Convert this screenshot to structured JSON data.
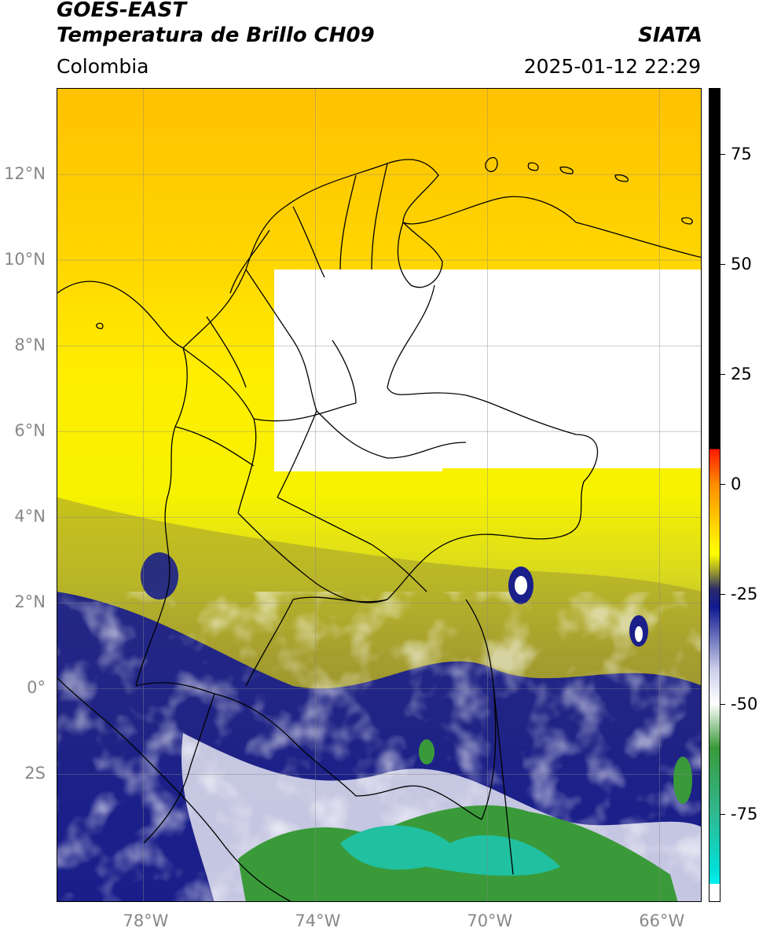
{
  "header": {
    "satellite": "GOES-EAST",
    "product": "Temperatura de Brillo CH09",
    "organization": "SIATA",
    "region": "Colombia",
    "datetime": "2025-01-12 22:29"
  },
  "map": {
    "extent": {
      "lon_min": -80,
      "lon_max": -65,
      "lat_min": -5,
      "lat_max": 14
    },
    "x_ticks": [
      {
        "lon": -78,
        "label": "78°W"
      },
      {
        "lon": -74,
        "label": "74°W"
      },
      {
        "lon": -70,
        "label": "70°W"
      },
      {
        "lon": -66,
        "label": "66°W"
      }
    ],
    "y_ticks": [
      {
        "lat": 12,
        "label": "12°N"
      },
      {
        "lat": 10,
        "label": "10°N"
      },
      {
        "lat": 8,
        "label": "8°N"
      },
      {
        "lat": 6,
        "label": "6°N"
      },
      {
        "lat": 4,
        "label": "4°N"
      },
      {
        "lat": 2,
        "label": "2°N"
      },
      {
        "lat": 0,
        "label": "0°"
      },
      {
        "lat": -2,
        "label": "2S"
      }
    ],
    "gridlines": true,
    "colors": {
      "warm_orange": "#ffb000",
      "yellow": "#ffee00",
      "olive": "#a8a030",
      "navy": "#1a1f8a",
      "white": "#ffffff",
      "green": "#3a9a3a",
      "teal": "#20c0a0"
    }
  },
  "colorbar": {
    "range": [
      -95,
      90
    ],
    "ticks": [
      {
        "value": 75,
        "label": "75"
      },
      {
        "value": 50,
        "label": "50"
      },
      {
        "value": 25,
        "label": "25"
      },
      {
        "value": 0,
        "label": "0"
      },
      {
        "value": -25,
        "label": "-25"
      },
      {
        "value": -50,
        "label": "-50"
      },
      {
        "value": -75,
        "label": "-75"
      }
    ],
    "stops": [
      {
        "value": 90,
        "color": "#000000"
      },
      {
        "value": 8,
        "color": "#000000"
      },
      {
        "value": 7.9,
        "color": "#ff1a00"
      },
      {
        "value": 0,
        "color": "#ff8c00"
      },
      {
        "value": -10,
        "color": "#ffd800"
      },
      {
        "value": -16,
        "color": "#ffff00"
      },
      {
        "value": -20,
        "color": "#9a9a30"
      },
      {
        "value": -24,
        "color": "#2a2a6a"
      },
      {
        "value": -28,
        "color": "#101a90"
      },
      {
        "value": -42,
        "color": "#c8cce8"
      },
      {
        "value": -50,
        "color": "#ffffff"
      },
      {
        "value": -60,
        "color": "#3a9a3a"
      },
      {
        "value": -75,
        "color": "#30b890"
      },
      {
        "value": -88,
        "color": "#00e0d8"
      },
      {
        "value": -91,
        "color": "#00f0f0"
      },
      {
        "value": -91.1,
        "color": "#ffffff"
      },
      {
        "value": -95,
        "color": "#ffffff"
      }
    ]
  }
}
